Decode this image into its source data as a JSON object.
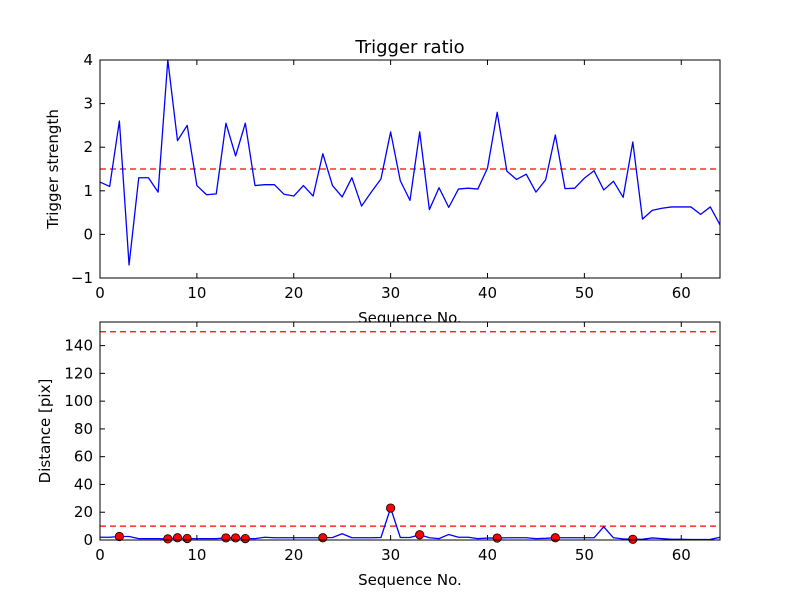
{
  "chart_data": [
    {
      "type": "line",
      "title": "Trigger ratio",
      "xlabel": "Sequence No.",
      "ylabel": "Trigger strength",
      "xlim": [
        0,
        64
      ],
      "ylim": [
        -1,
        4
      ],
      "xticks": [
        0,
        10,
        20,
        30,
        40,
        50,
        60
      ],
      "yticks": [
        -1,
        0,
        1,
        2,
        3,
        4
      ],
      "ytick_labels": [
        "−1",
        "0",
        "1",
        "2",
        "3",
        "4"
      ],
      "grid": false,
      "series": [
        {
          "color": "#0000ff",
          "x": [
            0,
            1,
            2,
            3,
            4,
            5,
            6,
            7,
            8,
            9,
            10,
            11,
            12,
            13,
            14,
            15,
            16,
            17,
            18,
            19,
            20,
            21,
            22,
            23,
            24,
            25,
            26,
            27,
            28,
            29,
            30,
            31,
            32,
            33,
            34,
            35,
            36,
            37,
            38,
            39,
            40,
            41,
            42,
            43,
            44,
            45,
            46,
            47,
            48,
            49,
            50,
            51,
            52,
            53,
            54,
            55,
            56,
            57,
            58,
            59,
            60,
            61,
            62,
            63,
            64
          ],
          "y": [
            1.2,
            1.1,
            2.6,
            -0.7,
            1.3,
            1.3,
            0.97,
            4.0,
            2.15,
            2.5,
            1.12,
            0.91,
            0.93,
            2.55,
            1.8,
            2.55,
            1.12,
            1.14,
            1.14,
            0.92,
            0.88,
            1.12,
            0.88,
            1.85,
            1.12,
            0.86,
            1.3,
            0.65,
            0.97,
            1.27,
            2.35,
            1.23,
            0.78,
            2.35,
            0.57,
            1.07,
            0.62,
            1.04,
            1.06,
            1.04,
            1.52,
            2.8,
            1.45,
            1.26,
            1.38,
            0.97,
            1.25,
            2.28,
            1.05,
            1.06,
            1.29,
            1.46,
            1.02,
            1.22,
            0.85,
            2.12,
            0.35,
            0.55,
            0.6,
            0.63,
            0.63,
            0.63,
            0.46,
            0.63,
            0.22
          ]
        }
      ],
      "reference_lines": [
        {
          "y": 1.5,
          "color": "#ff0000",
          "style": "dashed"
        }
      ]
    },
    {
      "type": "line",
      "title": "",
      "xlabel": "Sequence No.",
      "ylabel": "Distance [pix]",
      "xlim": [
        0,
        64
      ],
      "ylim": [
        0,
        157
      ],
      "xticks": [
        0,
        10,
        20,
        30,
        40,
        50,
        60
      ],
      "yticks": [
        0,
        20,
        40,
        60,
        80,
        100,
        120,
        140
      ],
      "grid": false,
      "series": [
        {
          "color": "#0000ff",
          "x": [
            0,
            1,
            2,
            3,
            4,
            5,
            6,
            7,
            8,
            9,
            10,
            11,
            12,
            13,
            14,
            15,
            16,
            17,
            18,
            19,
            20,
            21,
            22,
            23,
            24,
            25,
            26,
            27,
            28,
            29,
            30,
            31,
            32,
            33,
            34,
            35,
            36,
            37,
            38,
            39,
            40,
            41,
            42,
            43,
            44,
            45,
            46,
            47,
            48,
            49,
            50,
            51,
            52,
            53,
            54,
            55,
            56,
            57,
            58,
            59,
            60,
            61,
            62,
            63,
            64
          ],
          "y": [
            2,
            2,
            2.5,
            2.5,
            1,
            1,
            1,
            0.8,
            1.6,
            1.1,
            1,
            1,
            1,
            1.5,
            1.5,
            1,
            1,
            2,
            1.6,
            1.6,
            1.6,
            1.6,
            1.6,
            1.6,
            1.8,
            4.5,
            1.6,
            1.6,
            1.6,
            1.8,
            23,
            1.8,
            1.8,
            3.8,
            1.6,
            1,
            4,
            2,
            2,
            1,
            1.4,
            1.4,
            1.6,
            1.6,
            1.6,
            1,
            1.2,
            1.6,
            1.6,
            1.6,
            1.6,
            1.6,
            9.5,
            1.6,
            0.8,
            0.5,
            0.5,
            1.5,
            1,
            0.5,
            0.5,
            0.3,
            0.3,
            0.4,
            2
          ]
        }
      ],
      "markers": {
        "color": "#ff0000",
        "edgecolor": "#000000",
        "x": [
          2,
          7,
          8,
          9,
          13,
          14,
          15,
          23,
          30,
          33,
          41,
          47,
          55
        ],
        "y": [
          2.5,
          0.8,
          1.6,
          1.1,
          1.5,
          1.5,
          1.0,
          1.6,
          23,
          3.8,
          1.4,
          1.6,
          0.5
        ]
      },
      "reference_lines": [
        {
          "y": 10,
          "color": "#ff0000",
          "style": "dashed"
        },
        {
          "y": 150,
          "color": "#ff0000",
          "style": "dashed"
        }
      ]
    }
  ]
}
